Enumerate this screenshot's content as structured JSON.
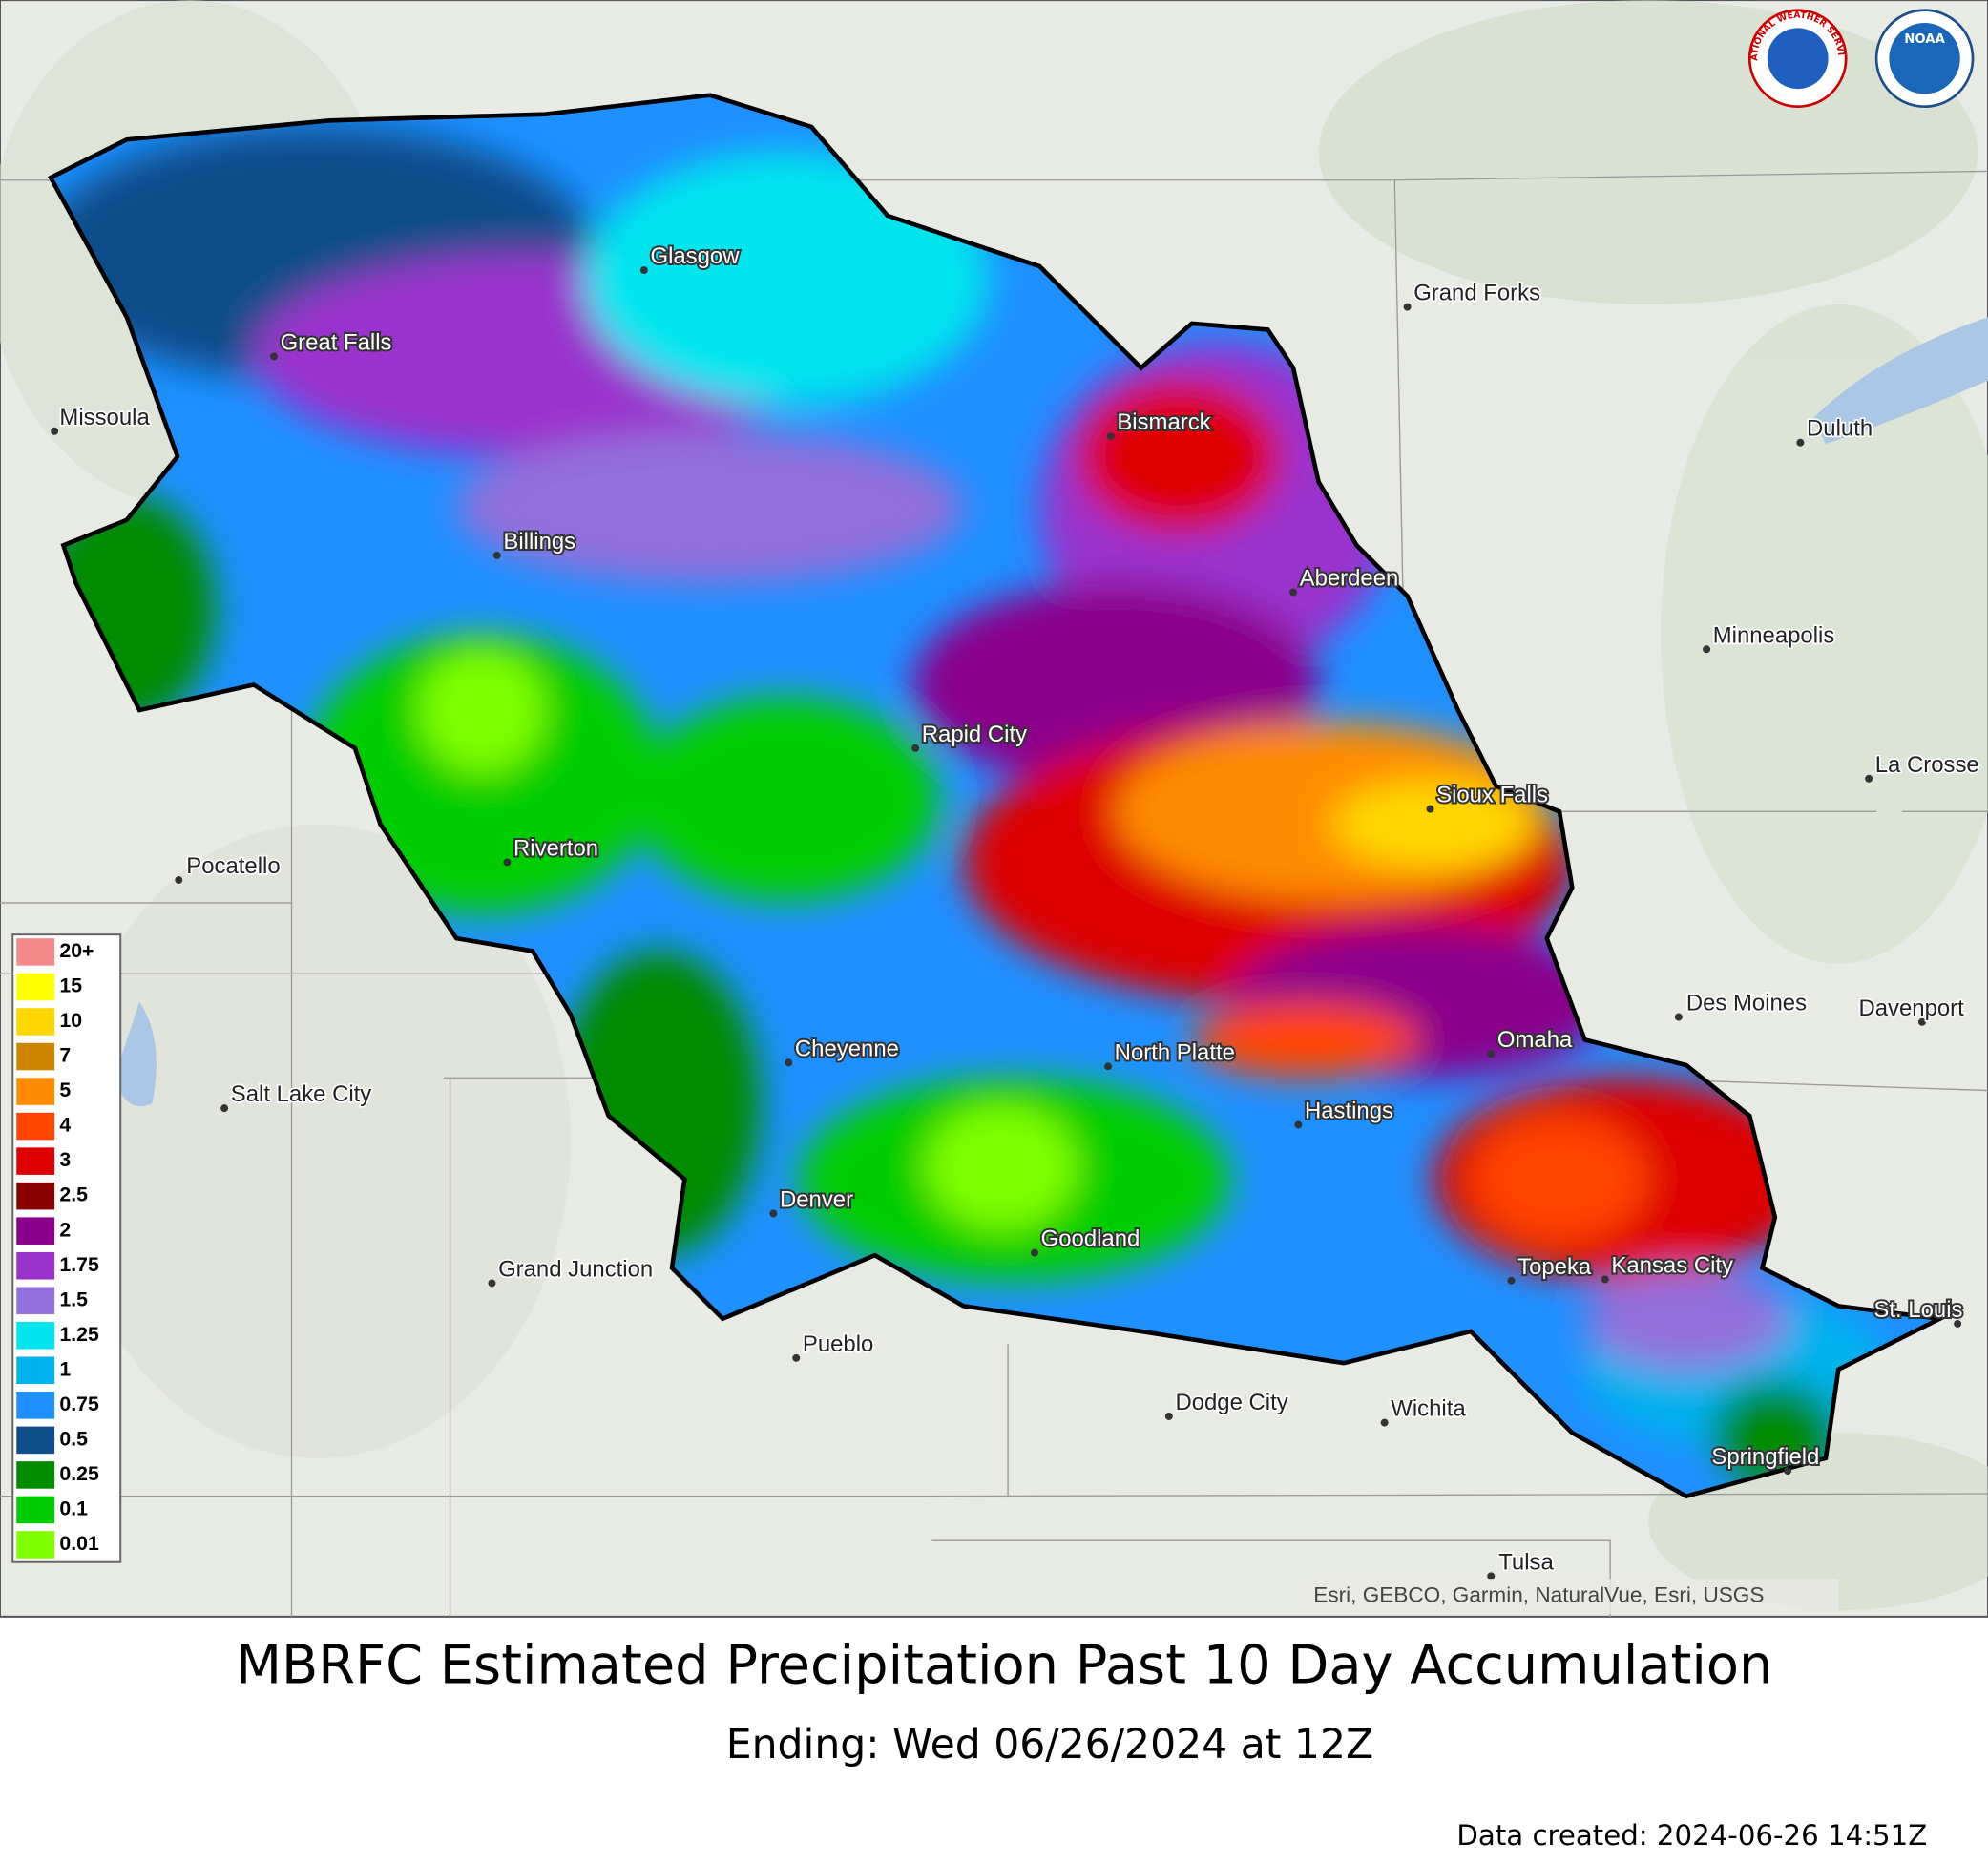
{
  "map": {
    "title": "MBRFC Estimated Precipitation Past 10 Day Accumulation",
    "subtitle": "Ending: Wed 06/26/2024 at 12Z",
    "data_created": "Data created: 2024-06-26 14:51Z",
    "attribution": "Esri, GEBCO, Garmin, NaturalVue, Esri, USGS",
    "logos": {
      "nws": "NATIONAL WEATHER SERVICE",
      "noaa": "NOAA"
    },
    "legend": [
      {
        "label": "20+",
        "color": "#f28a8a"
      },
      {
        "label": "15",
        "color": "#ffff00"
      },
      {
        "label": "10",
        "color": "#ffd700"
      },
      {
        "label": "7",
        "color": "#cd8500"
      },
      {
        "label": "5",
        "color": "#ff8c00"
      },
      {
        "label": "4",
        "color": "#ff4500"
      },
      {
        "label": "3",
        "color": "#dd0000"
      },
      {
        "label": "2.5",
        "color": "#8b0000"
      },
      {
        "label": "2",
        "color": "#8b008b"
      },
      {
        "label": "1.75",
        "color": "#9a32cd"
      },
      {
        "label": "1.5",
        "color": "#9370db"
      },
      {
        "label": "1.25",
        "color": "#00e5ee"
      },
      {
        "label": "1",
        "color": "#00b2ee"
      },
      {
        "label": "0.75",
        "color": "#1e90ff"
      },
      {
        "label": "0.5",
        "color": "#104e8b"
      },
      {
        "label": "0.25",
        "color": "#008b00"
      },
      {
        "label": "0.1",
        "color": "#00cd00"
      },
      {
        "label": "0.01",
        "color": "#7fff00"
      }
    ],
    "cities": [
      "Glasgow",
      "Great Falls",
      "Missoula",
      "Billings",
      "Grand Forks",
      "Bismarck",
      "Duluth",
      "Aberdeen",
      "Minneapolis",
      "Rapid City",
      "Sioux Falls",
      "La Crosse",
      "Pocatello",
      "Riverton",
      "Des Moines",
      "Davenport",
      "Cheyenne",
      "North Platte",
      "Omaha",
      "Salt Lake City",
      "Hastings",
      "Denver",
      "Goodland",
      "Grand Junction",
      "Topeka",
      "Kansas City",
      "St. Louis",
      "Pueblo",
      "Dodge City",
      "Wichita",
      "Springfield",
      "Tulsa"
    ]
  }
}
